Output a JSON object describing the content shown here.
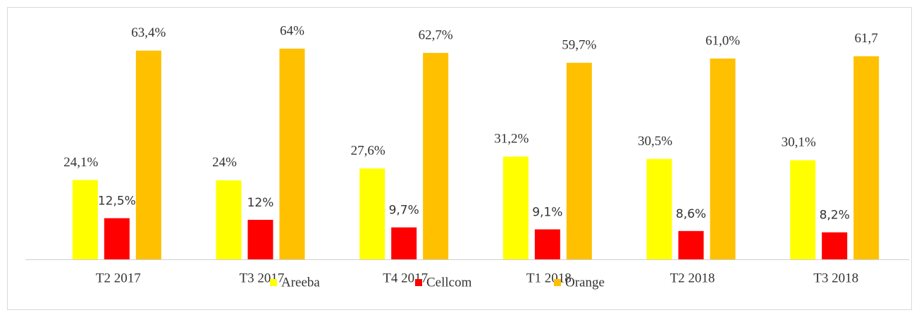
{
  "chart_data": {
    "type": "bar",
    "categories": [
      "T2 2017",
      "T3 2017",
      "T4 2017",
      "T1 2018",
      "T2 2018",
      "T3 2018"
    ],
    "series": [
      {
        "name": "Areeba",
        "color": "#ffff00",
        "values": [
          24.1,
          24,
          27.6,
          31.2,
          30.5,
          30.1
        ],
        "value_labels": [
          "24,1%",
          "24%",
          "27,6%",
          "31,2%",
          "30,5%",
          "30,1%"
        ]
      },
      {
        "name": "Cellcom",
        "color": "#ff0000",
        "values": [
          12.5,
          12,
          9.7,
          9.1,
          8.6,
          8.2
        ],
        "value_labels": [
          "12,5%",
          "12%",
          "9,7%",
          "9,1%",
          "8,6%",
          "8,2%"
        ]
      },
      {
        "name": "Orange",
        "color": "#ffc000",
        "values": [
          63.4,
          64,
          62.7,
          59.7,
          61.0,
          61.7
        ],
        "value_labels": [
          "63,4%",
          "64%",
          "62,7%",
          "59,7%",
          "61,0%",
          "61,7"
        ]
      }
    ],
    "ylim": [
      0,
      70
    ],
    "legend": "bottom"
  }
}
